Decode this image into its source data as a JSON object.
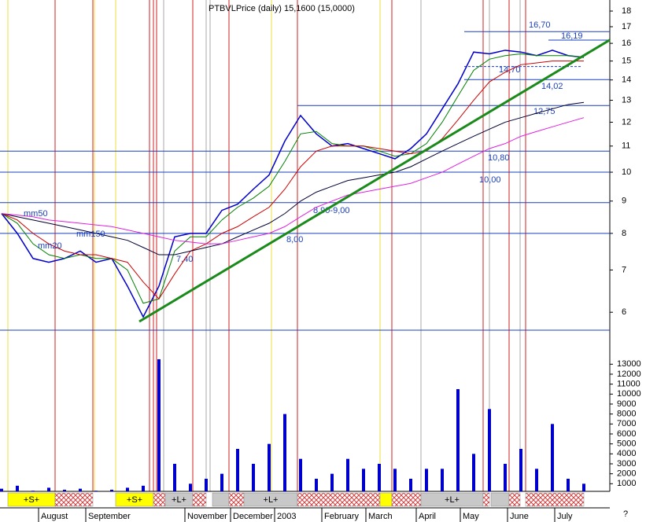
{
  "chart_data": {
    "type": "line",
    "title": "PTBVLPrice (daily) 15,1600 (15,0000)",
    "scale": "log",
    "ylim": [
      5.62,
      18.74
    ],
    "yticks": [
      6,
      7,
      8,
      9,
      10,
      11,
      12,
      13,
      14,
      15,
      16,
      17,
      18
    ],
    "series": [
      {
        "color": "#0000cc",
        "values": [
          8.6,
          8.0,
          7.3,
          7.2,
          7.3,
          7.5,
          7.2,
          7.3,
          6.6,
          5.9,
          6.6,
          7.9,
          8.0,
          8.0,
          8.7,
          8.9,
          9.4,
          9.9,
          11.2,
          12.3,
          11.5,
          11.0,
          11.1,
          10.9,
          10.7,
          10.5,
          10.9,
          11.5,
          12.6,
          13.8,
          15.5,
          15.4,
          15.6,
          15.5,
          15.3,
          15.6,
          15.3,
          15.2
        ]
      },
      {
        "name": "mm20",
        "color": "#008000",
        "values": [
          8.6,
          8.3,
          7.7,
          7.4,
          7.3,
          7.4,
          7.3,
          7.3,
          7.0,
          6.2,
          6.3,
          7.5,
          7.9,
          7.9,
          8.4,
          8.8,
          9.1,
          9.5,
          10.4,
          11.5,
          11.6,
          11.1,
          11.0,
          11.0,
          10.8,
          10.6,
          10.7,
          11.1,
          12.0,
          13.2,
          14.5,
          15.1,
          15.3,
          15.4,
          15.3,
          15.3,
          15.3,
          15.2
        ]
      },
      {
        "name": "mm50",
        "color": "#cc0000",
        "values": [
          8.6,
          8.4,
          8.0,
          7.7,
          7.5,
          7.4,
          7.4,
          7.3,
          7.2,
          6.7,
          6.3,
          6.9,
          7.5,
          7.7,
          8.0,
          8.2,
          8.5,
          8.8,
          9.4,
          10.2,
          10.8,
          11.0,
          11.0,
          11.0,
          10.9,
          10.8,
          10.7,
          10.8,
          11.3,
          12.1,
          13.0,
          13.9,
          14.4,
          14.8,
          14.9,
          15.0,
          15.0,
          15.0
        ]
      },
      {
        "name": "mm150",
        "color": "#000033",
        "values": [
          8.6,
          8.5,
          8.4,
          8.3,
          8.2,
          8.1,
          8.0,
          7.9,
          7.8,
          7.6,
          7.4,
          7.4,
          7.5,
          7.6,
          7.7,
          7.9,
          8.1,
          8.3,
          8.6,
          9.0,
          9.3,
          9.5,
          9.7,
          9.8,
          9.9,
          10.0,
          10.2,
          10.5,
          10.8,
          11.1,
          11.4,
          11.7,
          12.0,
          12.2,
          12.4,
          12.6,
          12.8,
          12.9
        ]
      },
      {
        "color": "#e020e0",
        "values": [
          8.6,
          8.55,
          8.5,
          8.4,
          8.35,
          8.3,
          8.25,
          8.2,
          8.1,
          8.0,
          7.9,
          7.8,
          7.75,
          7.7,
          7.7,
          7.8,
          7.9,
          8.0,
          8.2,
          8.5,
          8.8,
          9.0,
          9.2,
          9.3,
          9.4,
          9.5,
          9.6,
          9.8,
          10.0,
          10.3,
          10.6,
          10.9,
          11.1,
          11.4,
          11.6,
          11.8,
          12.0,
          12.2
        ]
      }
    ],
    "levels": [
      {
        "value": 16.7,
        "label": "16,70"
      },
      {
        "value": 16.19,
        "label": "16,19"
      },
      {
        "value": 14.7,
        "label": "14,70"
      },
      {
        "value": 14.02,
        "label": "14,02"
      },
      {
        "value": 12.75,
        "label": "12,75"
      },
      {
        "value": 10.8,
        "label": "10,80"
      },
      {
        "value": 10.0,
        "label": "10,00"
      },
      {
        "value": 8.95,
        "label": "8,90-9,00"
      },
      {
        "value": 8.0,
        "label": "8,00"
      },
      {
        "value": 7.4,
        "label": "7,40"
      }
    ],
    "trendline": [
      5.8,
      16.2
    ],
    "volume": {
      "color": "#0000cc",
      "ylim": [
        0,
        14050
      ],
      "yticks": [
        1000,
        2000,
        3000,
        4000,
        5000,
        6000,
        7000,
        8000,
        9000,
        10000,
        11000,
        12000,
        13000
      ],
      "values": [
        500,
        800,
        300,
        600,
        400,
        500,
        300,
        400,
        600,
        800,
        13500,
        3000,
        1000,
        1500,
        2000,
        4500,
        3000,
        5000,
        8000,
        3500,
        1500,
        2000,
        3500,
        2500,
        3000,
        2500,
        1500,
        2500,
        2500,
        10500,
        4000,
        8500,
        3000,
        4500,
        2500,
        7000,
        1500,
        1000
      ]
    },
    "signals": [
      "+S+",
      "+S+",
      "+L+",
      "+L+",
      "+L+"
    ],
    "months": [
      "August",
      "September",
      "November",
      "December",
      "2003",
      "February",
      "March",
      "April",
      "May",
      "June",
      "July"
    ]
  }
}
